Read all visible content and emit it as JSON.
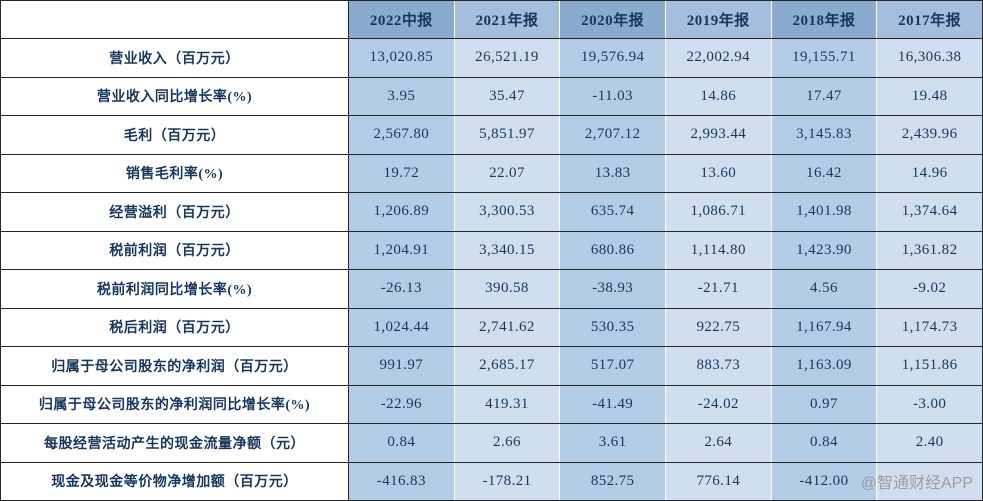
{
  "watermark": {
    "text": "@智通财经APP"
  },
  "colors": {
    "header_dark": "#8aabce",
    "header_light": "#a5bedb",
    "cell_dark": "#b5cce6",
    "cell_light": "#cfdff0",
    "text": "#17375e",
    "grid": "#262626",
    "watermark": "#9e9e9e"
  },
  "chart_data": {
    "type": "table",
    "title": "",
    "corner": "",
    "column_headers": [
      "2022中报",
      "2021年报",
      "2020年报",
      "2019年报",
      "2018年报",
      "2017年报"
    ],
    "rows": [
      {
        "label": "营业收入（百万元）",
        "values": [
          "13,020.85",
          "26,521.19",
          "19,576.94",
          "22,002.94",
          "19,155.71",
          "16,306.38"
        ]
      },
      {
        "label": "营业收入同比增长率(%)",
        "values": [
          "3.95",
          "35.47",
          "-11.03",
          "14.86",
          "17.47",
          "19.48"
        ]
      },
      {
        "label": "毛利（百万元）",
        "values": [
          "2,567.80",
          "5,851.97",
          "2,707.12",
          "2,993.44",
          "3,145.83",
          "2,439.96"
        ]
      },
      {
        "label": "销售毛利率(%)",
        "values": [
          "19.72",
          "22.07",
          "13.83",
          "13.60",
          "16.42",
          "14.96"
        ]
      },
      {
        "label": "经营溢利（百万元）",
        "values": [
          "1,206.89",
          "3,300.53",
          "635.74",
          "1,086.71",
          "1,401.98",
          "1,374.64"
        ]
      },
      {
        "label": "税前利润（百万元）",
        "values": [
          "1,204.91",
          "3,340.15",
          "680.86",
          "1,114.80",
          "1,423.90",
          "1,361.82"
        ]
      },
      {
        "label": "税前利润同比增长率(%)",
        "values": [
          "-26.13",
          "390.58",
          "-38.93",
          "-21.71",
          "4.56",
          "-9.02"
        ]
      },
      {
        "label": "税后利润（百万元）",
        "values": [
          "1,024.44",
          "2,741.62",
          "530.35",
          "922.75",
          "1,167.94",
          "1,174.73"
        ]
      },
      {
        "label": "归属于母公司股东的净利润（百万元）",
        "values": [
          "991.97",
          "2,685.17",
          "517.07",
          "883.73",
          "1,163.09",
          "1,151.86"
        ]
      },
      {
        "label": "归属于母公司股东的净利润同比增长率(%)",
        "values": [
          "-22.96",
          "419.31",
          "-41.49",
          "-24.02",
          "0.97",
          "-3.00"
        ]
      },
      {
        "label": "每股经营活动产生的现金流量净额（元）",
        "values": [
          "0.84",
          "2.66",
          "3.61",
          "2.64",
          "0.84",
          "2.40"
        ]
      },
      {
        "label": "现金及现金等价物净增加额（百万元）",
        "values": [
          "-416.83",
          "-178.21",
          "852.75",
          "776.14",
          "-412.00",
          ""
        ]
      }
    ]
  }
}
